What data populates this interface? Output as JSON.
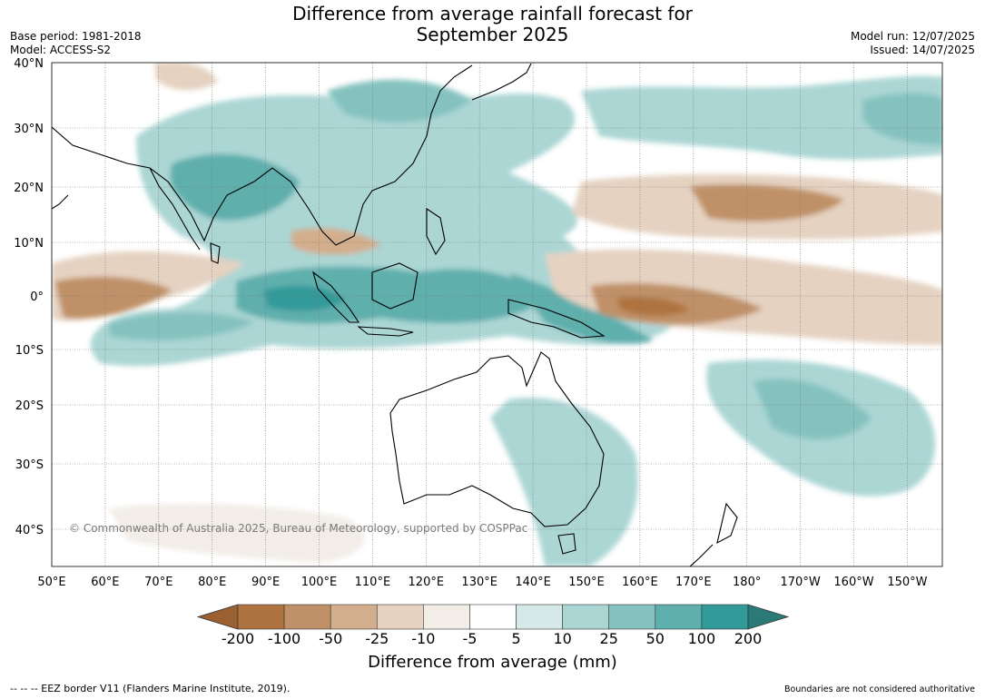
{
  "title_line1": "Difference from average rainfall forecast for",
  "title_line2": "September 2025",
  "base_period": "Base period: 1981-2018",
  "model": "Model: ACCESS-S2",
  "model_run": "Model run: 12/07/2025",
  "issued": "Issued: 14/07/2025",
  "lat_labels": [
    "40°N",
    "30°N",
    "20°N",
    "10°N",
    "0°",
    "10°S",
    "20°S",
    "30°S",
    "40°S"
  ],
  "lon_labels": [
    "50°E",
    "60°E",
    "70°E",
    "80°E",
    "90°E",
    "100°E",
    "110°E",
    "120°E",
    "130°E",
    "140°E",
    "150°E",
    "160°E",
    "170°E",
    "180°",
    "170°W",
    "160°W",
    "150°W"
  ],
  "copyright": "© Commonwealth of Australia 2025, Bureau of Meteorology, supported by COSPPac",
  "colorbar": {
    "tick_labels": [
      "-200",
      "-100",
      "-50",
      "-25",
      "-10",
      "-5",
      "5",
      "10",
      "25",
      "50",
      "100",
      "200"
    ],
    "colors": [
      "#9a6032",
      "#ae7340",
      "#c09168",
      "#d3ae8d",
      "#e5d2c1",
      "#f2ede7",
      "#ffffff",
      "#d4e9e8",
      "#abd6d4",
      "#85c2bf",
      "#5eafad",
      "#329a98",
      "#2b7a78"
    ],
    "label": "Difference from average (mm)"
  },
  "footer_left": "--  --  -- EEZ border V11 (Flanders Marine Institute, 2019).",
  "footer_right": "Boundaries are not considered authoritative"
}
